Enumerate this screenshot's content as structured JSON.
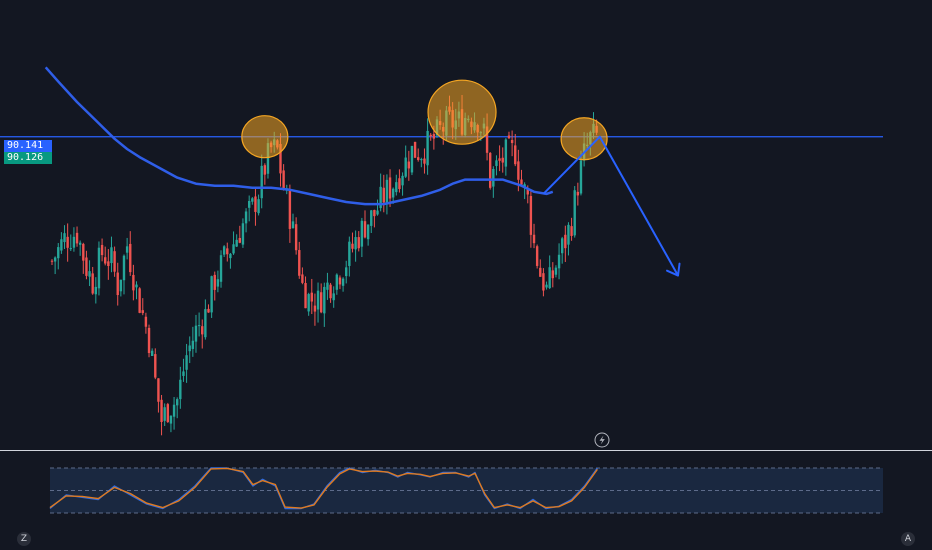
{
  "price_tags": {
    "upper": "90.141",
    "lower": "90.126"
  },
  "colors": {
    "background": "#131722",
    "bull": "#26a69a",
    "bear": "#ef5350",
    "resistance_line": "#2962ff",
    "moving_average": "#2f5ee8",
    "annotation_circle": "#f5a623",
    "stoch_k": "#2f6bdd",
    "stoch_d": "#e07a1f",
    "stoch_band": "#1c2a44"
  },
  "controls": {
    "left_button": "Z",
    "right_button": "A"
  },
  "icons": {
    "alert": "lightning-icon"
  },
  "chart_data": [
    {
      "type": "candlestick",
      "title": "",
      "resistance_level": 90.13,
      "ylim": [
        88.6,
        90.8
      ],
      "path_close": [
        [
          0,
          89.52
        ],
        [
          4,
          89.63
        ],
        [
          8,
          89.66
        ],
        [
          11,
          89.49
        ],
        [
          13,
          89.42
        ],
        [
          16,
          89.56
        ],
        [
          19,
          89.52
        ],
        [
          21,
          89.4
        ],
        [
          24,
          89.6
        ],
        [
          27,
          89.38
        ],
        [
          29,
          89.26
        ],
        [
          31,
          89.14
        ],
        [
          33,
          88.93
        ],
        [
          35,
          88.74
        ],
        [
          37,
          88.8
        ],
        [
          40,
          88.84
        ],
        [
          43,
          89.06
        ],
        [
          46,
          89.18
        ],
        [
          49,
          89.26
        ],
        [
          52,
          89.43
        ],
        [
          55,
          89.53
        ],
        [
          58,
          89.61
        ],
        [
          61,
          89.7
        ],
        [
          64,
          89.78
        ],
        [
          66,
          89.86
        ],
        [
          68,
          89.98
        ],
        [
          70,
          90.07
        ],
        [
          72,
          90.06
        ],
        [
          74,
          89.88
        ],
        [
          76,
          89.75
        ],
        [
          78,
          89.58
        ],
        [
          80,
          89.4
        ],
        [
          82,
          89.34
        ],
        [
          85,
          89.32
        ],
        [
          88,
          89.4
        ],
        [
          91,
          89.45
        ],
        [
          94,
          89.52
        ],
        [
          97,
          89.62
        ],
        [
          100,
          89.7
        ],
        [
          103,
          89.75
        ],
        [
          106,
          89.84
        ],
        [
          109,
          89.9
        ],
        [
          112,
          89.98
        ],
        [
          115,
          90.06
        ],
        [
          118,
          90.06
        ],
        [
          121,
          90.1
        ],
        [
          124,
          90.16
        ],
        [
          127,
          90.2
        ],
        [
          130,
          90.2
        ],
        [
          133,
          90.24
        ],
        [
          136,
          90.22
        ],
        [
          138,
          90.14
        ],
        [
          140,
          89.92
        ],
        [
          142,
          89.98
        ],
        [
          145,
          90.04
        ],
        [
          148,
          90.06
        ],
        [
          150,
          89.9
        ],
        [
          152,
          89.82
        ],
        [
          154,
          89.6
        ],
        [
          156,
          89.46
        ],
        [
          158,
          89.38
        ],
        [
          160,
          89.45
        ],
        [
          162,
          89.55
        ],
        [
          164,
          89.62
        ],
        [
          166,
          89.72
        ],
        [
          168,
          89.9
        ],
        [
          170,
          90.04
        ],
        [
          172,
          90.12
        ],
        [
          174,
          90.13
        ]
      ],
      "moving_average_path": [
        [
          -2,
          90.47
        ],
        [
          2,
          90.4
        ],
        [
          8,
          90.3
        ],
        [
          14,
          90.21
        ],
        [
          20,
          90.12
        ],
        [
          24,
          90.07
        ],
        [
          28,
          90.03
        ],
        [
          34,
          89.98
        ],
        [
          40,
          89.93
        ],
        [
          46,
          89.9
        ],
        [
          52,
          89.89
        ],
        [
          58,
          89.89
        ],
        [
          64,
          89.88
        ],
        [
          70,
          89.88
        ],
        [
          76,
          89.87
        ],
        [
          82,
          89.85
        ],
        [
          88,
          89.83
        ],
        [
          94,
          89.81
        ],
        [
          100,
          89.8
        ],
        [
          106,
          89.8
        ],
        [
          112,
          89.82
        ],
        [
          118,
          89.84
        ],
        [
          124,
          89.87
        ],
        [
          128,
          89.9
        ],
        [
          132,
          89.92
        ],
        [
          138,
          89.92
        ],
        [
          144,
          89.92
        ],
        [
          150,
          89.89
        ],
        [
          154,
          89.86
        ],
        [
          158,
          89.85
        ],
        [
          160,
          89.86
        ]
      ],
      "highlighted_peaks": [
        {
          "x": 68,
          "price": 90.14,
          "size": "small"
        },
        {
          "x": 131,
          "price": 90.27,
          "size": "large"
        },
        {
          "x": 170,
          "price": 90.13,
          "size": "small"
        }
      ],
      "projection_path": [
        [
          157,
          89.85
        ],
        [
          175,
          90.13
        ],
        [
          200,
          89.45
        ]
      ]
    },
    {
      "type": "line",
      "title": "",
      "ylim": [
        0,
        100
      ],
      "band": [
        20,
        80
      ],
      "midline": 50,
      "series": [
        {
          "role": "k",
          "points": [
            [
              0,
              10
            ],
            [
              5,
              40
            ],
            [
              10,
              35
            ],
            [
              15,
              30
            ],
            [
              20,
              60
            ],
            [
              25,
              40
            ],
            [
              30,
              20
            ],
            [
              35,
              10
            ],
            [
              40,
              30
            ],
            [
              45,
              60
            ],
            [
              50,
              100
            ],
            [
              55,
              100
            ],
            [
              60,
              90
            ],
            [
              63,
              60
            ],
            [
              66,
              75
            ],
            [
              70,
              60
            ],
            [
              73,
              10
            ],
            [
              78,
              10
            ],
            [
              82,
              20
            ],
            [
              86,
              60
            ],
            [
              90,
              90
            ],
            [
              93,
              100
            ],
            [
              97,
              90
            ],
            [
              101,
              95
            ],
            [
              105,
              90
            ],
            [
              108,
              80
            ],
            [
              111,
              90
            ],
            [
              115,
              85
            ],
            [
              118,
              80
            ],
            [
              122,
              90
            ],
            [
              126,
              90
            ],
            [
              130,
              80
            ],
            [
              132,
              90
            ],
            [
              135,
              40
            ],
            [
              138,
              10
            ],
            [
              142,
              20
            ],
            [
              146,
              10
            ],
            [
              150,
              30
            ],
            [
              154,
              10
            ],
            [
              158,
              15
            ],
            [
              162,
              30
            ],
            [
              166,
              60
            ],
            [
              170,
              100
            ]
          ]
        },
        {
          "role": "d",
          "points": [
            [
              0,
              12
            ],
            [
              5,
              38
            ],
            [
              10,
              37
            ],
            [
              15,
              32
            ],
            [
              20,
              57
            ],
            [
              25,
              43
            ],
            [
              30,
              22
            ],
            [
              35,
              12
            ],
            [
              40,
              27
            ],
            [
              45,
              57
            ],
            [
              50,
              98
            ],
            [
              55,
              99
            ],
            [
              60,
              92
            ],
            [
              63,
              63
            ],
            [
              66,
              72
            ],
            [
              70,
              63
            ],
            [
              73,
              13
            ],
            [
              78,
              11
            ],
            [
              82,
              18
            ],
            [
              86,
              57
            ],
            [
              90,
              87
            ],
            [
              93,
              98
            ],
            [
              97,
              92
            ],
            [
              101,
              93
            ],
            [
              105,
              91
            ],
            [
              108,
              82
            ],
            [
              111,
              88
            ],
            [
              115,
              86
            ],
            [
              118,
              81
            ],
            [
              122,
              88
            ],
            [
              126,
              89
            ],
            [
              130,
              82
            ],
            [
              132,
              88
            ],
            [
              135,
              43
            ],
            [
              138,
              12
            ],
            [
              142,
              18
            ],
            [
              146,
              12
            ],
            [
              150,
              27
            ],
            [
              154,
              12
            ],
            [
              158,
              14
            ],
            [
              162,
              27
            ],
            [
              166,
              57
            ],
            [
              170,
              97
            ]
          ]
        }
      ]
    }
  ]
}
